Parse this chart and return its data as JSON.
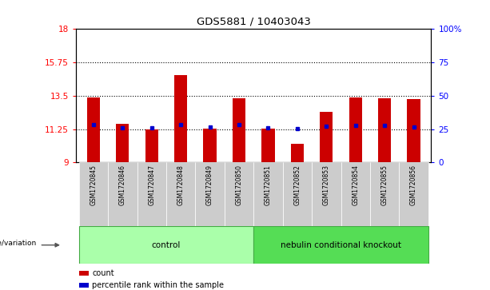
{
  "title": "GDS5881 / 10403043",
  "samples": [
    "GSM1720845",
    "GSM1720846",
    "GSM1720847",
    "GSM1720848",
    "GSM1720849",
    "GSM1720850",
    "GSM1720851",
    "GSM1720852",
    "GSM1720853",
    "GSM1720854",
    "GSM1720855",
    "GSM1720856"
  ],
  "bar_values": [
    13.4,
    11.6,
    11.2,
    14.9,
    11.3,
    13.35,
    11.3,
    10.25,
    12.4,
    13.4,
    13.35,
    13.3
  ],
  "bar_base": 9,
  "percentile_values": [
    11.55,
    11.35,
    11.35,
    11.55,
    11.4,
    11.55,
    11.35,
    11.3,
    11.45,
    11.5,
    11.5,
    11.4
  ],
  "ylim_left": [
    9,
    18
  ],
  "ylim_right": [
    0,
    100
  ],
  "yticks_left": [
    9,
    11.25,
    13.5,
    15.75,
    18
  ],
  "yticks_right": [
    0,
    25,
    50,
    75,
    100
  ],
  "ytick_labels_left": [
    "9",
    "11.25",
    "13.5",
    "15.75",
    "18"
  ],
  "ytick_labels_right": [
    "0",
    "25",
    "50",
    "75",
    "100%"
  ],
  "hlines": [
    11.25,
    13.5,
    15.75
  ],
  "bar_color": "#cc0000",
  "percentile_color": "#0000cc",
  "group1_label": "control",
  "group2_label": "nebulin conditional knockout",
  "group1_indices": [
    0,
    1,
    2,
    3,
    4,
    5
  ],
  "group2_indices": [
    6,
    7,
    8,
    9,
    10,
    11
  ],
  "group1_color": "#aaffaa",
  "group2_color": "#55dd55",
  "tick_bg_color": "#cccccc",
  "legend_count_label": "count",
  "legend_percentile_label": "percentile rank within the sample",
  "genotype_label": "genotype/variation"
}
